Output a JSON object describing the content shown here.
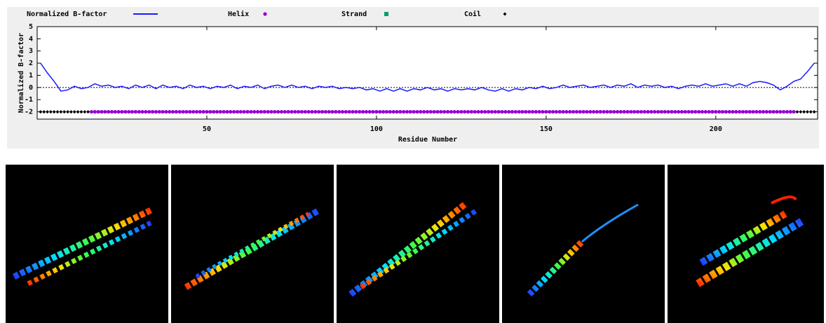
{
  "chart_data": {
    "type": "line",
    "xlabel": "Residue Number",
    "ylabel": "Normalized B-factor",
    "xlim": [
      0,
      230
    ],
    "xticks": [
      50,
      100,
      150,
      200
    ],
    "ylim": [
      -2.6,
      5
    ],
    "yticks": [
      -2,
      -1,
      0,
      1,
      2,
      3,
      4,
      5
    ],
    "zero_line": 0,
    "legend": "top",
    "series": [
      {
        "name": "Normalized B-factor",
        "color": "#1a1aff",
        "x": [
          1,
          3,
          5,
          7,
          9,
          11,
          13,
          15,
          17,
          19,
          21,
          23,
          25,
          27,
          29,
          31,
          33,
          35,
          37,
          39,
          41,
          43,
          45,
          47,
          49,
          51,
          53,
          55,
          57,
          59,
          61,
          63,
          65,
          67,
          69,
          71,
          73,
          75,
          77,
          79,
          81,
          83,
          85,
          87,
          89,
          91,
          93,
          95,
          97,
          99,
          101,
          103,
          105,
          107,
          109,
          111,
          113,
          115,
          117,
          119,
          121,
          123,
          125,
          127,
          129,
          131,
          133,
          135,
          137,
          139,
          141,
          143,
          145,
          147,
          149,
          151,
          153,
          155,
          157,
          159,
          161,
          163,
          165,
          167,
          169,
          171,
          173,
          175,
          177,
          179,
          181,
          183,
          185,
          187,
          189,
          191,
          193,
          195,
          197,
          199,
          201,
          203,
          205,
          207,
          209,
          211,
          213,
          215,
          217,
          219,
          221,
          223,
          225,
          227,
          229
        ],
        "values": [
          2.0,
          1.2,
          0.5,
          -0.3,
          -0.2,
          0.1,
          -0.1,
          0.0,
          0.3,
          0.1,
          0.2,
          0.0,
          0.1,
          -0.1,
          0.2,
          0.0,
          0.2,
          -0.1,
          0.2,
          0.0,
          0.1,
          -0.1,
          0.2,
          0.0,
          0.1,
          -0.1,
          0.1,
          0.0,
          0.2,
          -0.1,
          0.1,
          0.0,
          0.2,
          -0.1,
          0.1,
          0.2,
          0.0,
          0.2,
          0.0,
          0.1,
          -0.1,
          0.1,
          0.0,
          0.1,
          -0.1,
          0.0,
          -0.1,
          0.0,
          -0.2,
          -0.1,
          -0.3,
          -0.1,
          -0.3,
          -0.1,
          -0.3,
          -0.1,
          -0.2,
          0.0,
          -0.2,
          -0.1,
          -0.3,
          -0.1,
          -0.2,
          -0.1,
          -0.2,
          0.0,
          -0.2,
          -0.3,
          -0.1,
          -0.3,
          -0.1,
          -0.2,
          0.0,
          -0.1,
          0.1,
          -0.1,
          0.0,
          0.2,
          0.0,
          0.1,
          0.2,
          0.0,
          0.1,
          0.2,
          0.0,
          0.2,
          0.1,
          0.3,
          0.0,
          0.2,
          0.1,
          0.2,
          0.0,
          0.1,
          -0.1,
          0.1,
          0.2,
          0.1,
          0.3,
          0.1,
          0.2,
          0.3,
          0.1,
          0.3,
          0.1,
          0.4,
          0.5,
          0.4,
          0.2,
          -0.2,
          0.1,
          0.5,
          0.7,
          1.3,
          2.0
        ]
      },
      {
        "name": "Helix",
        "color": "#9400d3",
        "marker": "circle",
        "y": -2,
        "ranges": [
          [
            16,
            223
          ]
        ]
      },
      {
        "name": "Strand",
        "color": "#009e73",
        "marker": "square",
        "y": -2,
        "ranges": []
      },
      {
        "name": "Coil",
        "color": "#000000",
        "marker": "diamond",
        "y": -2,
        "ranges": [
          [
            1,
            15
          ],
          [
            224,
            229
          ]
        ]
      }
    ]
  }
}
